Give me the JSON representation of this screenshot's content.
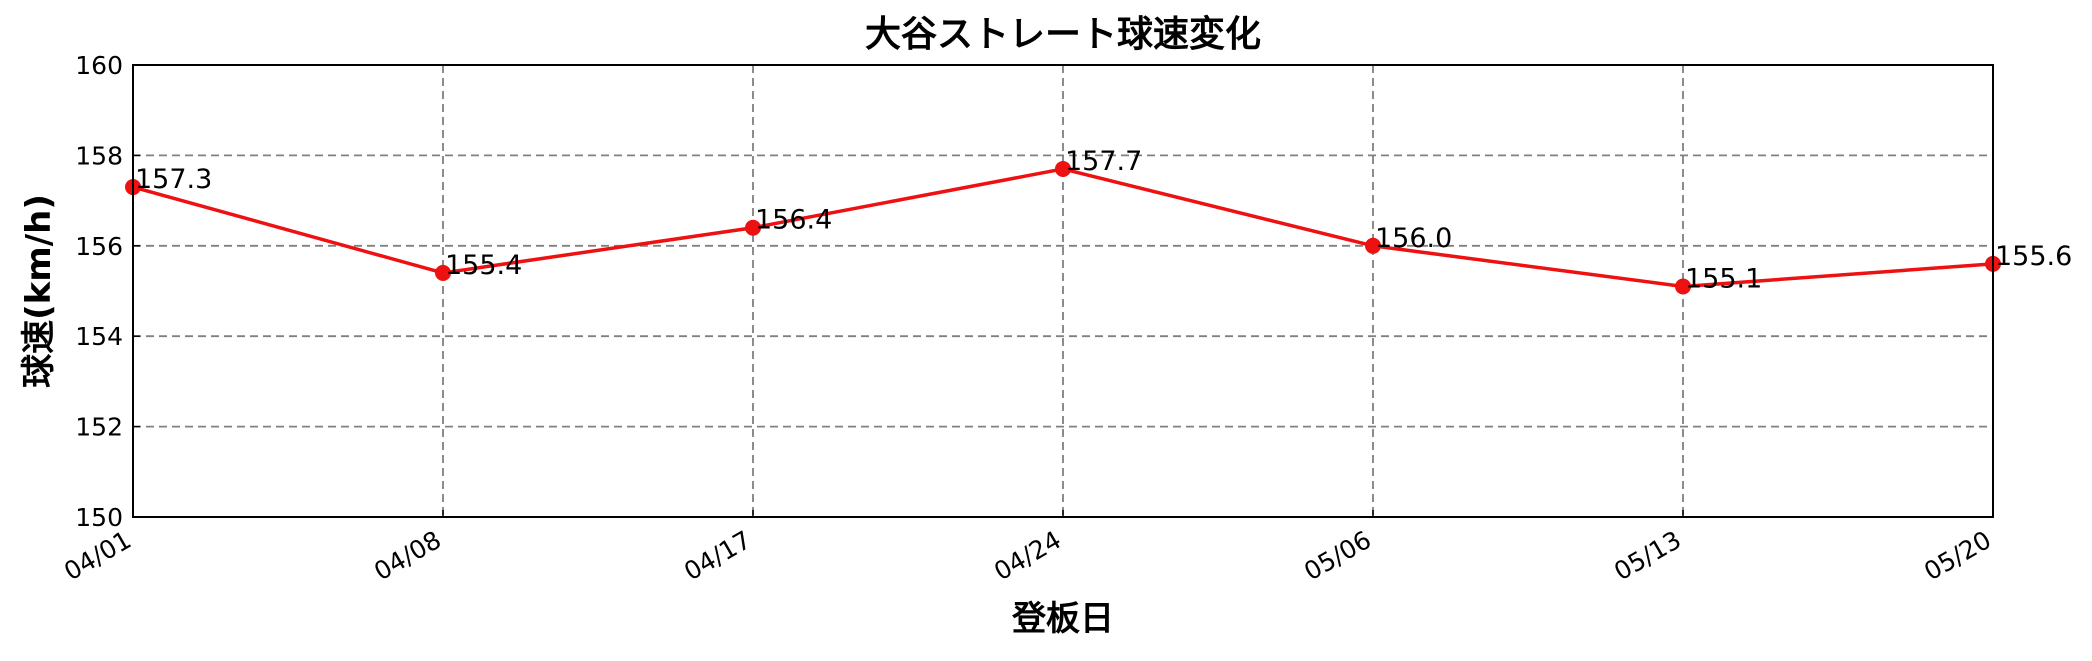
{
  "chart_data": {
    "type": "line",
    "title": "大谷ストレート球速変化",
    "xlabel": "登板日",
    "ylabel": "球速(km/h)",
    "categories": [
      "04/01",
      "04/08",
      "04/17",
      "04/24",
      "05/06",
      "05/13",
      "05/20"
    ],
    "series": [
      {
        "values": [
          157.3,
          155.4,
          156.4,
          157.7,
          156.0,
          155.1,
          155.6
        ]
      }
    ],
    "data_labels": [
      "157.3",
      "155.4",
      "156.4",
      "157.7",
      "156.0",
      "155.1",
      "155.6"
    ],
    "ylim": [
      150,
      160
    ],
    "yticks": [
      150,
      152,
      154,
      156,
      158,
      160
    ],
    "grid": true,
    "line_color": "#ee1111",
    "marker_color": "#ee1111",
    "grid_color": "#808080"
  }
}
